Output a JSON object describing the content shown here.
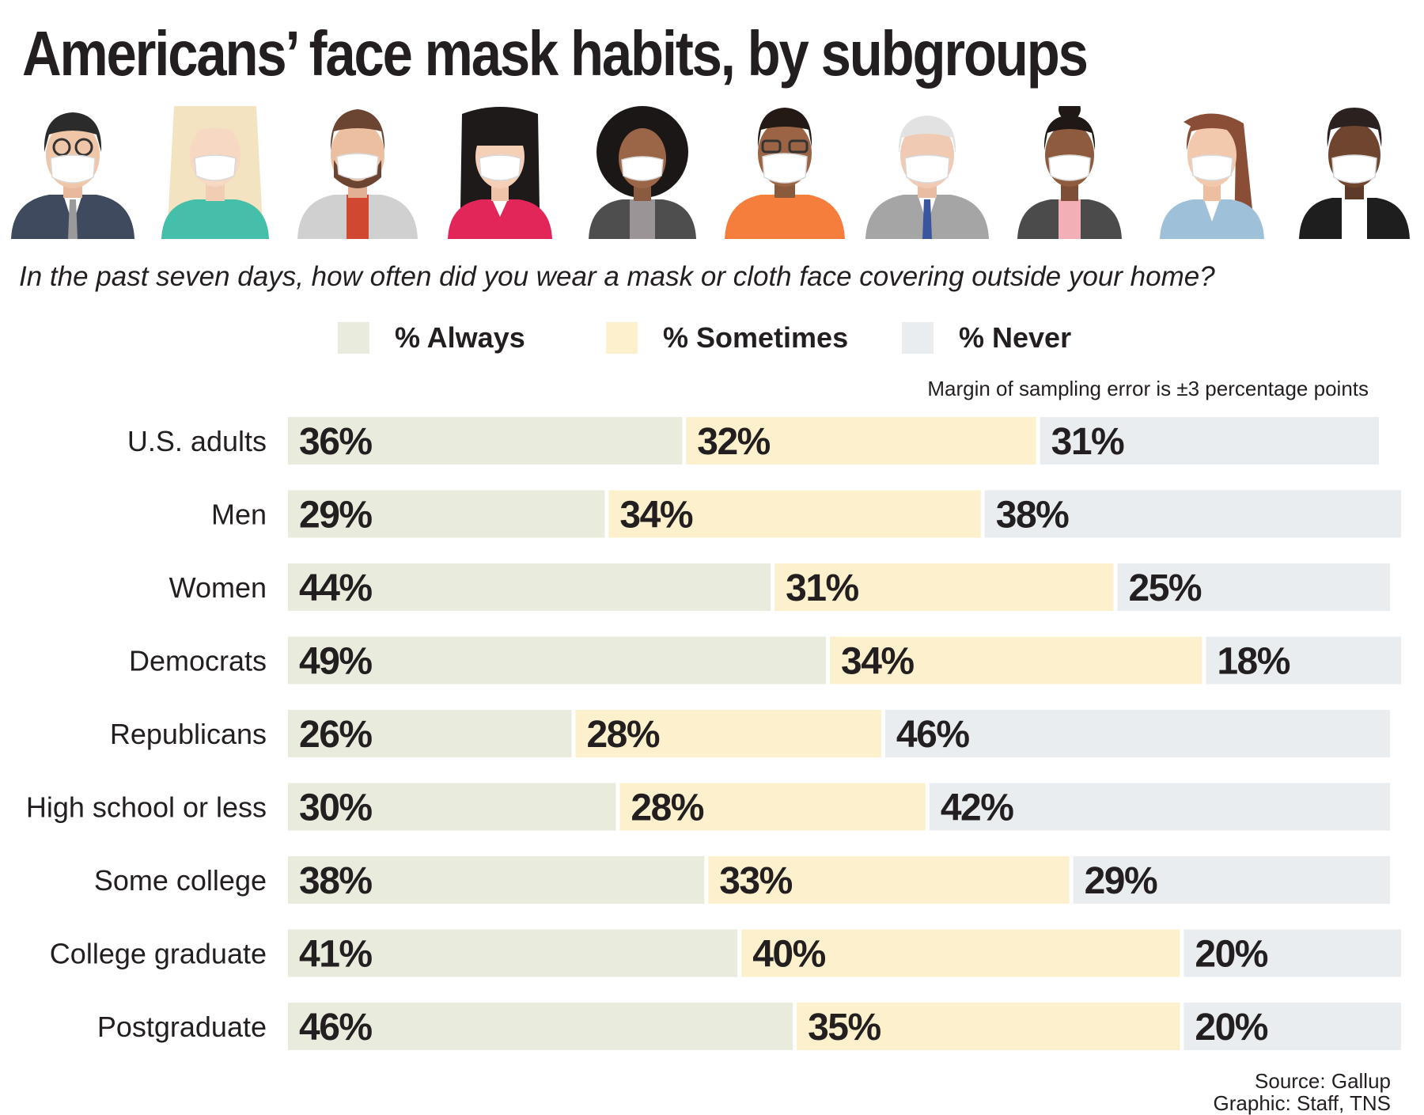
{
  "title": "Americans’ face mask habits, by subgroups",
  "question": "In the past seven days, how often did you wear a mask or cloth face covering outside your home?",
  "note": "Margin of sampling error is ±3 percentage points",
  "source_line1": "Source: Gallup",
  "source_line2": "Graphic: Staff, TNS",
  "colors": {
    "always": "#e9ecdd",
    "sometimes": "#fdf0cc",
    "never": "#e9edf0"
  },
  "chart_data": {
    "type": "bar",
    "orientation": "horizontal",
    "stacked": true,
    "categories": [
      "U.S. adults",
      "Men",
      "Women",
      "Democrats",
      "Republicans",
      "High school or less",
      "Some college",
      "College graduate",
      "Postgraduate"
    ],
    "series": [
      {
        "name": "% Always",
        "values": [
          36,
          29,
          44,
          49,
          26,
          30,
          38,
          41,
          46
        ],
        "labels": [
          "36%",
          "29%",
          "44%",
          "49%",
          "26%",
          "30%",
          "38%",
          "41%",
          "46%"
        ]
      },
      {
        "name": "% Sometimes",
        "values": [
          32,
          34,
          31,
          34,
          28,
          28,
          33,
          40,
          35
        ],
        "labels": [
          "32%",
          "34%",
          "31%",
          "34%",
          "28%",
          "28%",
          "33%",
          "40%",
          "35%"
        ]
      },
      {
        "name": "% Never",
        "values": [
          31,
          38,
          25,
          18,
          46,
          42,
          29,
          20,
          20
        ],
        "labels": [
          "31%",
          "38%",
          "25%",
          "18%",
          "46%",
          "42%",
          "29%",
          "20%",
          "20%"
        ]
      }
    ],
    "xlim": [
      0,
      101
    ],
    "grid": false,
    "legend": "top"
  }
}
